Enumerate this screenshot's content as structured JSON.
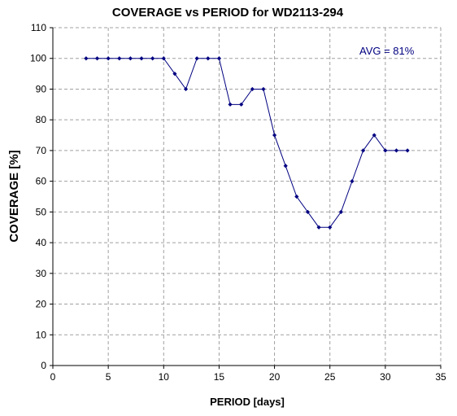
{
  "chart_data": {
    "type": "line",
    "title": "COVERAGE vs PERIOD for WD2113-294",
    "xlabel": "PERIOD [days]",
    "ylabel": "COVERAGE [%]",
    "xlim": [
      0,
      35
    ],
    "ylim": [
      0,
      110
    ],
    "xticks": [
      0,
      5,
      10,
      15,
      20,
      25,
      30,
      35
    ],
    "yticks": [
      0,
      10,
      20,
      30,
      40,
      50,
      60,
      70,
      80,
      90,
      100,
      110
    ],
    "grid": true,
    "annotation": "AVG = 81%",
    "series": [
      {
        "x": [
          3,
          4,
          5,
          6,
          7,
          8,
          9,
          10,
          11,
          12,
          13,
          14,
          15,
          16,
          17,
          18,
          19,
          20,
          21,
          22,
          23,
          24,
          25,
          26,
          27,
          28,
          29,
          30,
          31,
          32
        ],
        "values": [
          100,
          100,
          100,
          100,
          100,
          100,
          100,
          100,
          95,
          90,
          100,
          100,
          100,
          85,
          85,
          90,
          90,
          75,
          65,
          55,
          50,
          45,
          45,
          50,
          60,
          70,
          75,
          70,
          70,
          70
        ]
      }
    ],
    "colors": {
      "line": "#000080",
      "marker": "#000080",
      "grid": "#a0a0a0",
      "axis": "#000000"
    }
  }
}
